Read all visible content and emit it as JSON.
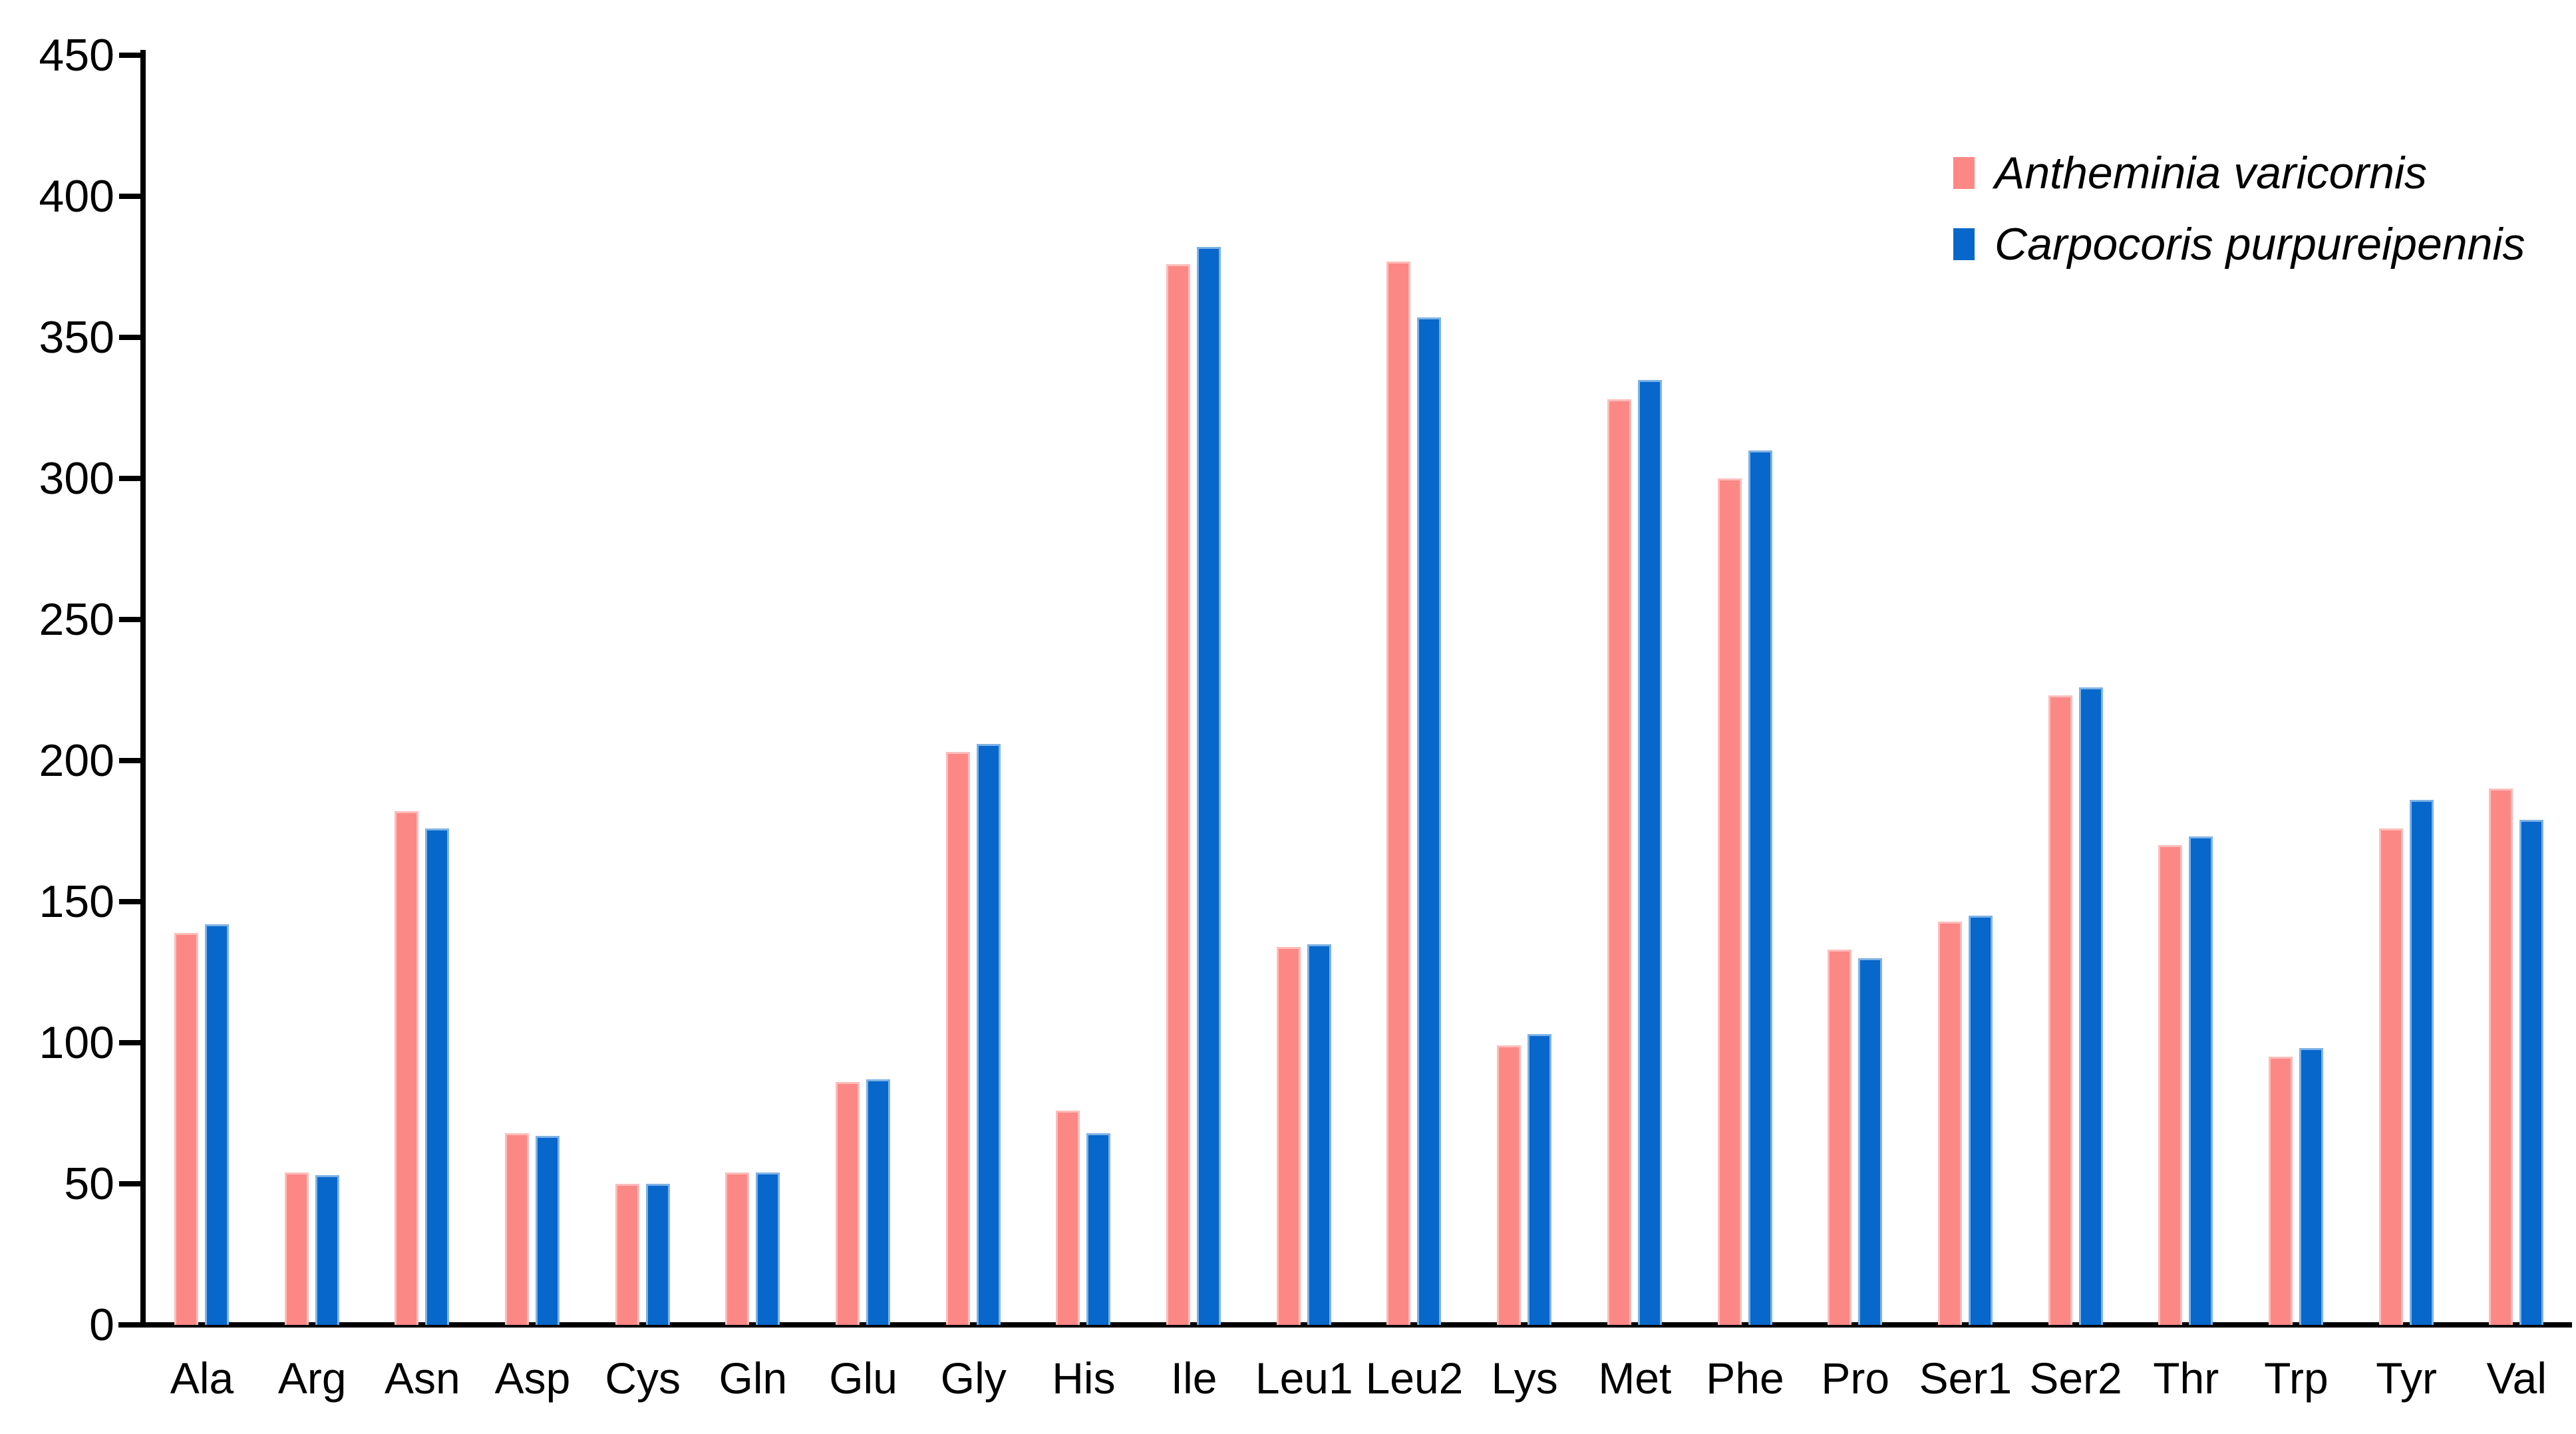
{
  "colors": {
    "axis": "#000000",
    "series1_fill": "#FC8886",
    "series1_edge": "#FDBDBB",
    "series2_fill": "#0767CB",
    "series2_edge": "#7FB2E5",
    "background": "#FFFFFF",
    "text": "#000000"
  },
  "legend": {
    "position": "top-right",
    "entries": [
      {
        "label": "Antheminia varicornis",
        "swatch": "series1-swatch"
      },
      {
        "label": "Carpocoris purpureipennis",
        "swatch": "series2-swatch"
      }
    ]
  },
  "chart_data": {
    "type": "bar",
    "title": "",
    "xlabel": "",
    "ylabel": "",
    "grid": false,
    "legend_position": "top-right",
    "ylim": [
      0,
      450
    ],
    "ytick_step": 50,
    "yticks": [
      0,
      50,
      100,
      150,
      200,
      250,
      300,
      350,
      400,
      450
    ],
    "categories": [
      "Ala",
      "Arg",
      "Asn",
      "Asp",
      "Cys",
      "Gln",
      "Glu",
      "Gly",
      "His",
      "Ile",
      "Leu1",
      "Leu2",
      "Lys",
      "Met",
      "Phe",
      "Pro",
      "Ser1",
      "Ser2",
      "Thr",
      "Trp",
      "Tyr",
      "Val"
    ],
    "series": [
      {
        "name": "Antheminia varicornis",
        "color": "#FC8886",
        "edge": "#FDBDBB",
        "values": [
          139,
          54,
          182,
          68,
          50,
          54,
          86,
          203,
          76,
          376,
          134,
          377,
          99,
          328,
          300,
          133,
          143,
          223,
          170,
          95,
          176,
          190
        ]
      },
      {
        "name": "Carpocoris purpureipennis",
        "color": "#0767CB",
        "edge": "#7FB2E5",
        "values": [
          142,
          53,
          176,
          67,
          50,
          54,
          87,
          206,
          68,
          382,
          135,
          357,
          103,
          335,
          310,
          130,
          145,
          226,
          173,
          98,
          186,
          179
        ]
      }
    ]
  }
}
